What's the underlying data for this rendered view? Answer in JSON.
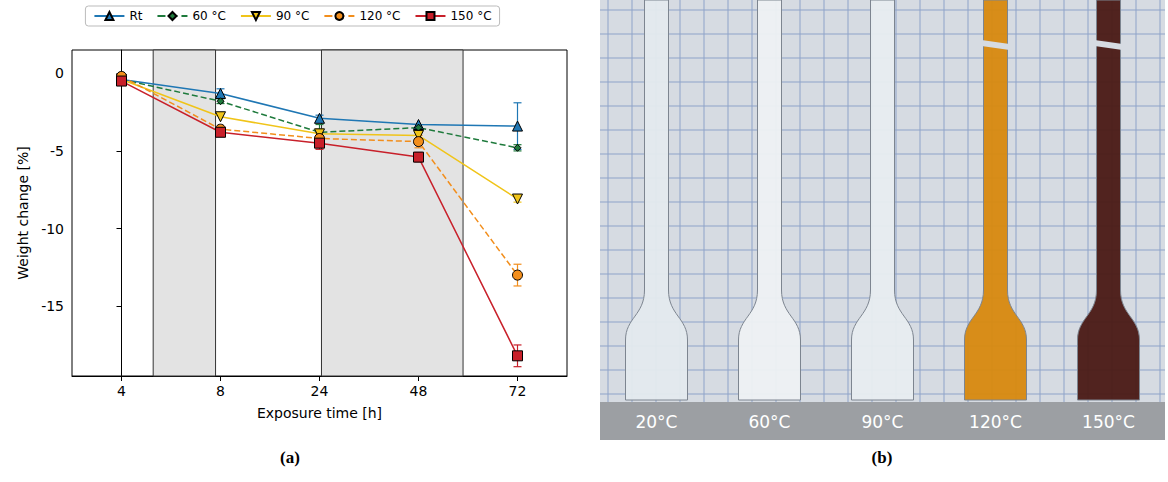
{
  "chart_data": {
    "type": "line",
    "label": "(a)",
    "x_label": "Exposure time [h]",
    "y_label": "Weight change [%]",
    "categories": [
      "4",
      "8",
      "24",
      "48",
      "72"
    ],
    "ylim": [
      -19.5,
      1.5
    ],
    "yticks": [
      0,
      -5,
      -10,
      -15
    ],
    "grid": false,
    "legend": "top",
    "series": [
      {
        "name": "Rt",
        "color": "#1f77b4",
        "marker": "triangle",
        "line_style": "solid",
        "values": [
          -0.4,
          -1.3,
          -2.9,
          -3.3,
          -3.4
        ],
        "errors": [
          null,
          0.3,
          0.2,
          null,
          1.5
        ]
      },
      {
        "name": "60 °C",
        "color": "#1e7a3c",
        "marker": "diamond",
        "line_style": "dashed",
        "values": [
          -0.4,
          -1.8,
          -3.8,
          -3.5,
          -4.8
        ],
        "errors": [
          null,
          0.15,
          0.5,
          0.2,
          0.2
        ]
      },
      {
        "name": "90 °C",
        "color": "#f0c419",
        "marker": "triangle-down",
        "line_style": "solid",
        "values": [
          -0.4,
          -2.8,
          -3.9,
          -4.0,
          -8.1
        ],
        "errors": [
          null,
          null,
          0.3,
          0.3,
          0.2
        ]
      },
      {
        "name": "120 °C",
        "color": "#f28e1c",
        "marker": "circle",
        "line_style": "dashed",
        "values": [
          -0.2,
          -3.6,
          -4.2,
          -4.4,
          -13.0
        ],
        "errors": [
          null,
          null,
          0.3,
          0.4,
          0.7
        ]
      },
      {
        "name": "150 °C",
        "color": "#c8202a",
        "marker": "square",
        "line_style": "solid",
        "values": [
          -0.5,
          -3.8,
          -4.5,
          -5.4,
          -18.2
        ],
        "errors": [
          null,
          null,
          0.4,
          0.3,
          0.7
        ]
      }
    ]
  },
  "photo": {
    "label": "(b)",
    "specimens": [
      {
        "label": "20°C",
        "color": "#e4eaee",
        "broken": false
      },
      {
        "label": "60°C",
        "color": "#eef1f3",
        "broken": false
      },
      {
        "label": "90°C",
        "color": "#e8edf0",
        "broken": false
      },
      {
        "label": "120°C",
        "color": "#d8890e",
        "broken": true
      },
      {
        "label": "150°C",
        "color": "#4a1914",
        "broken": true
      }
    ]
  }
}
